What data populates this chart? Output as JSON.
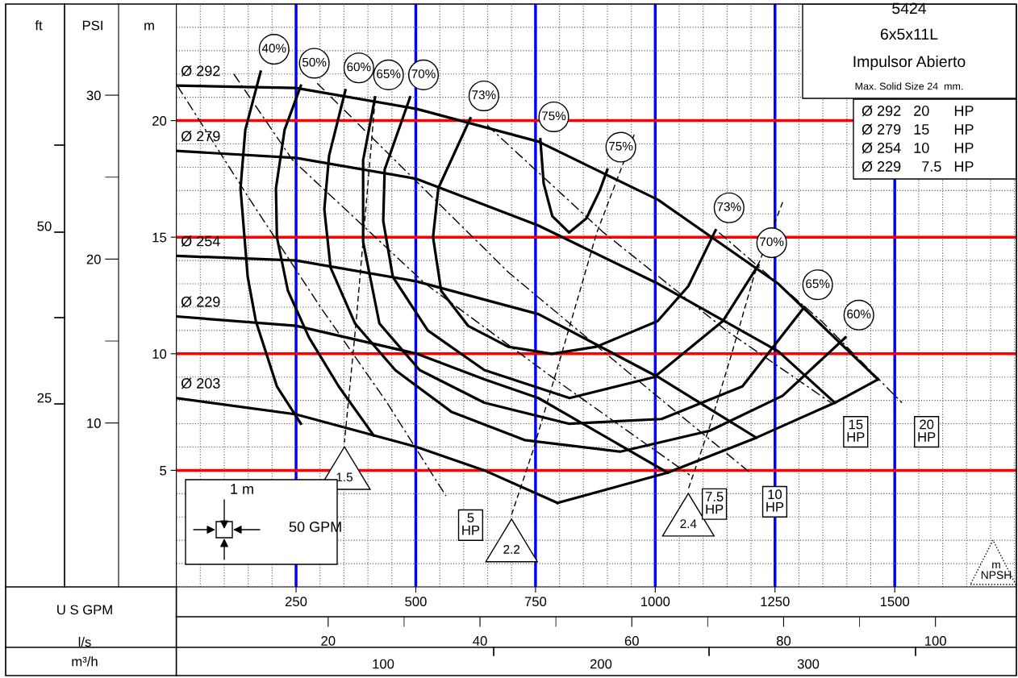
{
  "chart_data": {
    "type": "line",
    "title": "5424",
    "subtitle": "6x5x11L",
    "xlabel": "U S GPM",
    "ylabel": "m",
    "y2label": "PSI",
    "x2label": "l/s",
    "xlim": [
      0,
      1754
    ],
    "xticks": [
      250,
      500,
      750,
      1000,
      1250,
      1500
    ],
    "ylim": [
      0,
      25
    ],
    "yticks": [
      5,
      10,
      15,
      20
    ],
    "y2lim": [
      0,
      35.56
    ],
    "y2ticks": [
      10,
      20,
      30
    ],
    "x2lim": [
      0,
      110.66
    ],
    "x2ticks": [
      20,
      40,
      60,
      80,
      100
    ],
    "grid": true,
    "legend": false,
    "marker": "none",
    "series": [
      {
        "name": "Ø 292",
        "color": "#000000",
        "line_style": "solid",
        "x": [
          0,
          250,
          502,
          756,
          1006,
          1257,
          1465
        ],
        "values": [
          21.5,
          21.4,
          20.5,
          19.1,
          16.6,
          13.0,
          8.9
        ]
      },
      {
        "name": "Ø 279",
        "color": "#000000",
        "line_style": "solid",
        "x": [
          0,
          250,
          502,
          756,
          1006,
          1257,
          1375
        ],
        "values": [
          18.7,
          18.4,
          17.5,
          15.5,
          13.0,
          10.1,
          7.9
        ]
      },
      {
        "name": "Ø 254",
        "color": "#000000",
        "line_style": "solid",
        "x": [
          0,
          250,
          502,
          756,
          1006,
          1211
        ],
        "values": [
          14.2,
          14.0,
          13.1,
          11.7,
          9.0,
          6.4
        ]
      },
      {
        "name": "Ø 229",
        "color": "#000000",
        "line_style": "solid",
        "x": [
          0,
          250,
          502,
          643,
          756,
          1026
        ],
        "values": [
          11.6,
          11.2,
          10.0,
          8.9,
          8.1,
          4.9
        ]
      },
      {
        "name": "Ø 203",
        "color": "#000000",
        "line_style": "solid",
        "x": [
          0,
          250,
          502,
          643,
          796
        ],
        "values": [
          8.1,
          7.4,
          6.0,
          5.0,
          3.6
        ]
      },
      {
        "color": "#000000",
        "line_style": "solid",
        "x": [
          796,
          1026,
          1211,
          1375,
          1465
        ],
        "values": [
          3.6,
          4.9,
          6.4,
          7.9,
          8.9
        ]
      },
      {
        "name": "40%",
        "color": "#000000",
        "line_style": "solid",
        "x": [
          176,
          144,
          134,
          149,
          166,
          210,
          260
        ],
        "values": [
          22.1,
          19.6,
          17.1,
          13.3,
          11.4,
          8.6,
          7.0
        ]
      },
      {
        "name": "50%",
        "color": "#000000",
        "line_style": "solid",
        "x": [
          260,
          226,
          208,
          210,
          233,
          277,
          339,
          412
        ],
        "values": [
          21.5,
          19.6,
          17.1,
          15.0,
          12.7,
          10.7,
          8.6,
          6.5
        ]
      },
      {
        "name": "60%",
        "color": "#000000",
        "line_style": "solid",
        "x": [
          353,
          319,
          309,
          322,
          373,
          457,
          575,
          727,
          927,
          1114,
          1266,
          1397
        ],
        "values": [
          21.3,
          18.5,
          16.2,
          13.7,
          11.3,
          9.3,
          7.5,
          6.3,
          5.8,
          6.7,
          8.2,
          10.7
        ]
      },
      {
        "name": "65%",
        "color": "#000000",
        "line_style": "solid",
        "x": [
          415,
          390,
          390,
          424,
          508,
          643,
          819,
          1013,
          1182,
          1311
        ],
        "values": [
          21.0,
          18.3,
          14.8,
          11.3,
          9.3,
          7.9,
          7.0,
          7.2,
          8.6,
          12.0
        ]
      },
      {
        "name": "70%",
        "color": "#000000",
        "line_style": "solid",
        "x": [
          488,
          435,
          432,
          452,
          525,
          643,
          821,
          998,
          1141,
          1215
        ],
        "values": [
          21.0,
          17.9,
          15.7,
          13.3,
          11.0,
          9.3,
          8.1,
          9.0,
          11.4,
          13.8
        ]
      },
      {
        "name": "73%",
        "color": "#000000",
        "line_style": "solid",
        "x": [
          614,
          547,
          536,
          553,
          609,
          693,
          784,
          877,
          1005,
          1069,
          1126
        ],
        "values": [
          20.1,
          17.1,
          15.0,
          12.7,
          11.2,
          10.3,
          10.0,
          10.3,
          11.4,
          12.9,
          15.3
        ]
      },
      {
        "name": "75%",
        "color": "#000000",
        "line_style": "solid",
        "x": [
          760,
          767,
          785,
          820,
          856,
          884,
          900
        ],
        "values": [
          19.2,
          17.3,
          15.9,
          15.2,
          15.8,
          17.0,
          17.9
        ]
      },
      {
        "name": "5\nHP",
        "color": "#000000",
        "line_style": "dashdot",
        "x": [
          2,
          154,
          301,
          440,
          563
        ],
        "values": [
          21.5,
          16.6,
          12.0,
          7.9,
          3.9
        ]
      },
      {
        "name": "7.5\nHP",
        "color": "#000000",
        "line_style": "dashdot",
        "x": [
          120,
          243,
          520,
          811,
          1072
        ],
        "values": [
          22.0,
          18.3,
          13.0,
          8.6,
          4.8
        ]
      },
      {
        "name": "10\nHP",
        "color": "#000000",
        "line_style": "dashdot",
        "x": [
          294,
          693,
          979,
          1198
        ],
        "values": [
          21.6,
          13.5,
          8.6,
          4.9
        ]
      },
      {
        "name": "15\nHP",
        "color": "#000000",
        "line_style": "dashdot",
        "x": [
          649,
          892,
          1148,
          1367
        ],
        "values": [
          19.8,
          15.2,
          11.0,
          7.9
        ]
      },
      {
        "name": "20\nHP",
        "color": "#000000",
        "line_style": "dashdot",
        "x": [
          1133,
          1347,
          1515
        ],
        "values": [
          15.2,
          11.4,
          7.9
        ]
      },
      {
        "name": "1.5",
        "color": "#000000",
        "line_style": "dashed",
        "x": [
          415,
          376,
          351
        ],
        "values": [
          20.9,
          11.5,
          6.2
        ]
      },
      {
        "name": "2.2",
        "color": "#000000",
        "line_style": "dashed",
        "x": [
          956,
          878,
          806,
          744,
          700
        ],
        "values": [
          19.4,
          15.2,
          10.1,
          5.8,
          3.1
        ]
      },
      {
        "name": "2.4",
        "color": "#000000",
        "line_style": "dashed",
        "x": [
          1266,
          1207,
          1161,
          1114,
          1069
        ],
        "values": [
          16.5,
          13.4,
          10.1,
          6.9,
          4.2
        ]
      }
    ],
    "annotations": [
      "Impulsor Abierto",
      "Max. Solid Size 24  mm.",
      "Ø 292   20      HP",
      "Ø 279   15      HP",
      "Ø 254   10      HP",
      "Ø 229     7.5   HP",
      "1 m",
      "50 GPM",
      "m\nNPSH",
      "m³/h",
      "100",
      "200",
      "300",
      "ft",
      "25",
      "50"
    ]
  }
}
